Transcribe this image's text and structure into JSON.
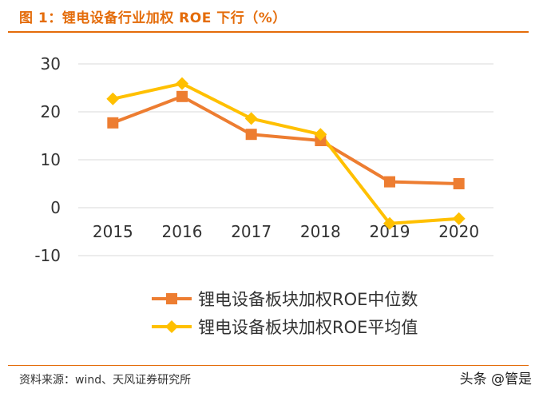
{
  "header": {
    "title": "图 1：锂电设备行业加权 ROE 下行（%）"
  },
  "footer": {
    "source": "资料来源：wind、天风证券研究所",
    "watermark": "头条 @管是"
  },
  "chart_data": {
    "type": "line",
    "title": "",
    "xlabel": "",
    "ylabel": "",
    "categories": [
      "2015",
      "2016",
      "2017",
      "2018",
      "2019",
      "2020"
    ],
    "series": [
      {
        "name": "锂电设备板块加权ROE中位数",
        "color": "#ED7D31",
        "marker": "square",
        "values": [
          17.7,
          23.2,
          15.3,
          14.0,
          5.4,
          5.0
        ]
      },
      {
        "name": "锂电设备板块加权ROE平均值",
        "color": "#FFC000",
        "marker": "diamond",
        "values": [
          22.7,
          25.9,
          18.6,
          15.3,
          -3.3,
          -2.3
        ]
      }
    ],
    "ylim": [
      -10,
      30
    ],
    "yticks": [
      30,
      20,
      10,
      0,
      -10
    ],
    "grid": true,
    "legend_position": "bottom"
  }
}
